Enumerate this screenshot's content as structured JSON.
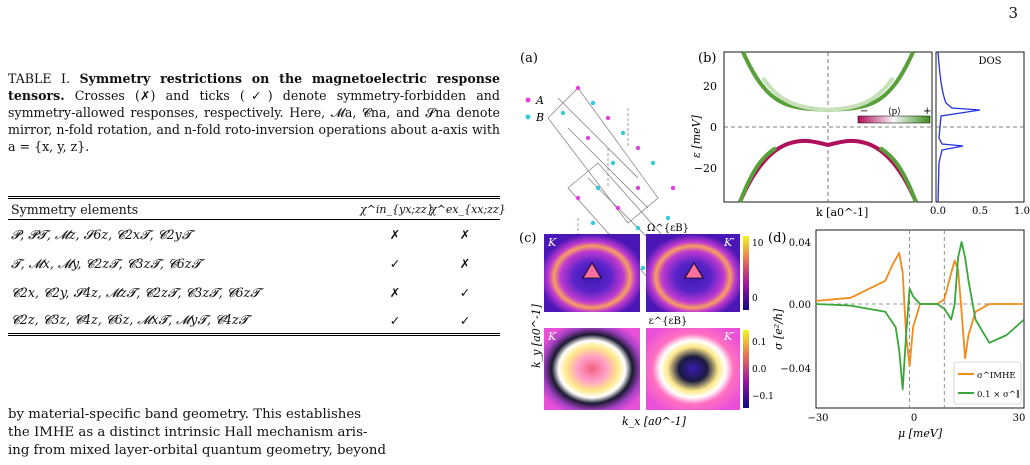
{
  "page_number": "3",
  "caption": {
    "label": "TABLE I.",
    "bold_title": "Symmetry restrictions on the magnetoelectric response tensors.",
    "text": "Crosses (✗) and ticks (✓) denote symmetry-forbidden and symmetry-allowed responses, respectively. Here, 𝓜a, 𝓒na, and 𝓢na denote mirror, n-fold rotation, and n-fold roto-inversion operations about a-axis with a = {x, y, z}."
  },
  "table": {
    "headers": [
      "Symmetry elements",
      "χ^in_{yx;zz}",
      "χ^ex_{xx;zz}"
    ],
    "rows": [
      {
        "elements": "𝓟, 𝓟𝓣, 𝓜z, 𝓢6z, 𝓒2x𝓣, 𝓒2y𝓣",
        "in": "✗",
        "ex": "✗"
      },
      {
        "elements": "𝓣, 𝓜x, 𝓜y, 𝓒2z𝓣, 𝓒3z𝓣, 𝓒6z𝓣",
        "in": "✓",
        "ex": "✗"
      },
      {
        "elements": "𝓒2x, 𝓒2y, 𝓢4z, 𝓜z𝓣, 𝓒2z𝓣, 𝓒3z𝓣, 𝓒6z𝓣",
        "in": "✗",
        "ex": "✓"
      },
      {
        "elements": "𝓒2z, 𝓒3z, 𝓒4z, 𝓒6z, 𝓜x𝓣, 𝓜y𝓣, 𝓒4z𝓣",
        "in": "✓",
        "ex": "✓"
      }
    ]
  },
  "body_text": [
    "by material-specific band geometry.   This establishes",
    "the IMHE as a distinct intrinsic Hall mechanism aris-",
    "ing from mixed layer-orbital quantum geometry, beyond"
  ],
  "figure": {
    "panel_a": {
      "label": "(a)",
      "legend": [
        {
          "label": "A",
          "color": "#dd44dd"
        },
        {
          "label": "B",
          "color": "#33ccdd"
        }
      ]
    },
    "panel_b": {
      "label": "(b)",
      "ylabel": "ε [meV]",
      "xlabel": "k [a0^-1]",
      "yticks": [
        "20",
        "0",
        "−20"
      ],
      "colorbar_label": "⟨p⟩",
      "colorbar_ends": [
        "−",
        "+"
      ],
      "dos_label": "DOS",
      "dos_xticks": [
        "0.0",
        "0.5",
        "1.0"
      ]
    },
    "panel_c": {
      "label": "(c)",
      "top_title": "Ω^{εB}",
      "bottom_title": "ε^{εB}",
      "valley_labels": [
        "K",
        "K′"
      ],
      "top_colorbar_ticks": [
        "10",
        "0"
      ],
      "bottom_colorbar_ticks": [
        "0.1",
        "0.0",
        "−0.1"
      ],
      "ylabel": "k_y [a0^-1]",
      "xlabel": "k_x [a0^-1]"
    },
    "panel_d": {
      "label": "(d)",
      "ylabel": "σ [e²/h]",
      "xlabel": "μ [meV]",
      "yticks": [
        "0.04",
        "0.00",
        "−0.04"
      ],
      "xticks": [
        "−30",
        "0",
        "30"
      ],
      "legend": [
        {
          "label": "σ^IMHE",
          "color": "#f28a1c"
        },
        {
          "label": "0.1 × σ^∥",
          "color": "#3aa63a"
        }
      ]
    }
  },
  "chart_data": [
    {
      "type": "line",
      "title": "",
      "xlabel": "k [a0^-1]",
      "ylabel": "ε [meV]",
      "ylim": [
        -32,
        32
      ],
      "series": [
        {
          "x": [
            -1.0,
            -0.8,
            -0.6,
            -0.4,
            -0.2,
            0.0,
            0.2,
            0.4,
            0.6,
            0.8,
            1.0
          ],
          "values": [
            33,
            18,
            12,
            11,
            10.5,
            10.5,
            10.5,
            11,
            12,
            18,
            33
          ]
        },
        {
          "x": [
            -1.0,
            -0.8,
            -0.6,
            -0.4,
            -0.2,
            0.0,
            0.2,
            0.4,
            0.6,
            0.8,
            1.0
          ],
          "values": [
            -33,
            -18,
            -12,
            -9.5,
            -8.5,
            -10.5,
            -8.5,
            -9.5,
            -12,
            -18,
            -33
          ]
        }
      ]
    },
    {
      "type": "line",
      "title": "",
      "xlabel": "μ [meV]",
      "ylabel": "σ [e²/h]",
      "xlim": [
        -30,
        30
      ],
      "ylim": [
        -0.06,
        0.045
      ],
      "series": [
        {
          "name": "σ^IMHE",
          "x": [
            -30,
            -20,
            -10,
            -8,
            -6,
            -5,
            -4,
            -3,
            -2,
            0,
            5,
            7,
            9,
            10,
            11,
            12,
            13,
            14,
            16,
            20,
            25,
            30
          ],
          "values": [
            0.002,
            0.004,
            0.015,
            0.025,
            0.033,
            0.02,
            -0.02,
            -0.04,
            -0.015,
            0.0,
            0.0,
            0.003,
            0.02,
            0.028,
            0.022,
            -0.005,
            -0.035,
            -0.02,
            -0.005,
            0.0,
            0.0,
            0.0
          ]
        },
        {
          "name": "0.1 × σ^∥",
          "x": [
            -30,
            -20,
            -10,
            -7,
            -6,
            -5,
            -4,
            -3,
            -2,
            0,
            5,
            7,
            9,
            10,
            11,
            12,
            13,
            14,
            16,
            20,
            25,
            30
          ],
          "values": [
            0.0,
            -0.001,
            -0.005,
            -0.015,
            -0.03,
            -0.055,
            -0.02,
            0.01,
            0.005,
            0.0,
            0.0,
            -0.003,
            -0.01,
            0.0,
            0.03,
            0.04,
            0.03,
            0.015,
            -0.01,
            -0.025,
            -0.02,
            -0.01
          ]
        }
      ]
    }
  ]
}
